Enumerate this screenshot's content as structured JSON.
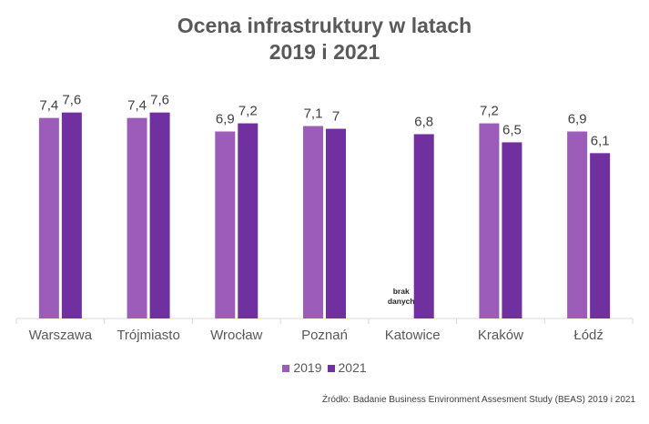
{
  "chart_data": {
    "type": "bar",
    "title": [
      "Ocena infrastruktury w latach",
      "2019 i 2021"
    ],
    "categories": [
      "Warszawa",
      "Trójmiasto",
      "Wrocław",
      "Poznań",
      "Katowice",
      "Kraków",
      "Łódź"
    ],
    "series": [
      {
        "name": "2019",
        "color": "#9B5DB9",
        "values": [
          7.4,
          7.4,
          6.9,
          7.1,
          null,
          7.2,
          6.9
        ],
        "labels": [
          "7,4",
          "7,4",
          "6,9",
          "7,1",
          "",
          "7,2",
          "6,9"
        ]
      },
      {
        "name": "2021",
        "color": "#7030A0",
        "values": [
          7.6,
          7.6,
          7.2,
          7.0,
          6.8,
          6.5,
          6.1
        ],
        "labels": [
          "7,6",
          "7,6",
          "7,2",
          "7",
          "6,8",
          "6,5",
          "6,1"
        ]
      }
    ],
    "annotations": [
      {
        "category": "Katowice",
        "series": "2019",
        "text": [
          "brak",
          "danych"
        ]
      }
    ],
    "ylim": [
      0,
      9.2
    ],
    "grid": false,
    "legend_position": "bottom"
  },
  "source": "Źródło: Badanie Business Environment Assesment Study (BEAS) 2019 i 2021"
}
